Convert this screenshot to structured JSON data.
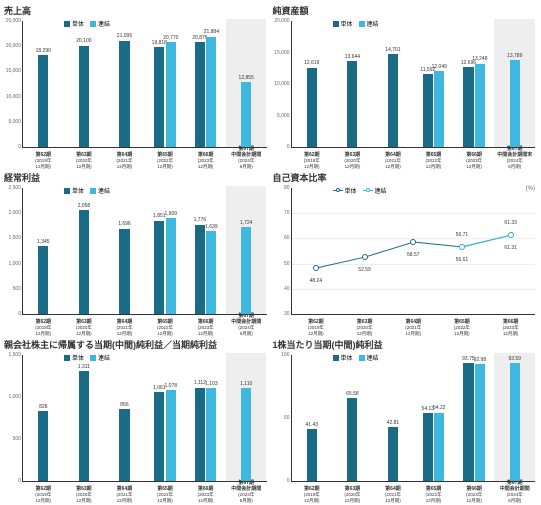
{
  "colors": {
    "tantai": "#1a6b85",
    "renketsu": "#3fb8e0",
    "grid": "#ddd",
    "highlight": "#e8e8e8"
  },
  "legend": {
    "tantai": "単体",
    "renketsu": "連結"
  },
  "periods": [
    {
      "p": "第62期",
      "y": "(2019年\n12月期)"
    },
    {
      "p": "第63期",
      "y": "(2020年\n12月期)"
    },
    {
      "p": "第64期",
      "y": "(2021年\n12月期)"
    },
    {
      "p": "第65期",
      "y": "(2022年\n12月期)"
    },
    {
      "p": "第66期",
      "y": "(2023年\n12月期)"
    },
    {
      "p": "第67期\n中間会計期間",
      "y": "(2024年\n6月期)"
    }
  ],
  "charts": [
    {
      "id": "sales",
      "title": "売上高",
      "unit": "(百万円)",
      "ymax": 25000,
      "ystep": 5000,
      "data": [
        {
          "t": 18290
        },
        {
          "t": 20100
        },
        {
          "t": 21096
        },
        {
          "t": 19818,
          "r": 20770
        },
        {
          "t": 20875,
          "r": 21884
        },
        {
          "r": 12855
        }
      ],
      "hl": 5
    },
    {
      "id": "netassets",
      "title": "純資産額",
      "unit": "(百万円)",
      "ymax": 20000,
      "ystep": 5000,
      "data": [
        {
          "t": 12619
        },
        {
          "t": 13644
        },
        {
          "t": 14701
        },
        {
          "t": 11592,
          "r": 12049
        },
        {
          "t": 12696,
          "r": 13248
        },
        {
          "r": 13789
        }
      ],
      "hl": 5,
      "hlLabel": "末"
    },
    {
      "id": "ordinary",
      "title": "経常利益",
      "unit": "(百万円)",
      "ymax": 2500,
      "ystep": 500,
      "data": [
        {
          "t": 1345
        },
        {
          "t": 2058
        },
        {
          "t": 1696
        },
        {
          "t": 1851,
          "r": 1909
        },
        {
          "t": 1776,
          "r": 1639
        },
        {
          "r": 1724
        }
      ],
      "hl": 5
    },
    {
      "id": "equity",
      "title": "自己資本比率",
      "unit": "(%)",
      "ymax": 80,
      "ymin": 30,
      "ystep": 10,
      "type": "line",
      "data": [
        {
          "t": 48.24
        },
        {
          "t": 52.59
        },
        {
          "t": 58.57
        },
        {
          "t": 56.61,
          "r": 56.71
        },
        {
          "t": 61.31,
          "r": 61.33
        }
      ]
    },
    {
      "id": "netincome",
      "title": "親会社株主に帰属する当期(中間)純利益／当期純利益",
      "unit": "(百万円)",
      "ymax": 1500,
      "ystep": 500,
      "data": [
        {
          "t": 828
        },
        {
          "t": 1311
        },
        {
          "t": 856
        },
        {
          "t": 1061,
          "r": 1078
        },
        {
          "t": 1112,
          "r": 1103
        },
        {
          "r": 1110
        }
      ],
      "hl": 5
    },
    {
      "id": "eps",
      "title": "1株当たり当期(中間)純利益",
      "unit": "(円)",
      "ymax": 100,
      "ystep": 50,
      "data": [
        {
          "t": 41.43
        },
        {
          "t": 65.58
        },
        {
          "t": 42.81
        },
        {
          "t": 54.13,
          "r": 54.22
        },
        {
          "t": 93.75,
          "r": 92.98
        },
        {
          "r": 93.59
        }
      ],
      "hl": 5
    }
  ]
}
